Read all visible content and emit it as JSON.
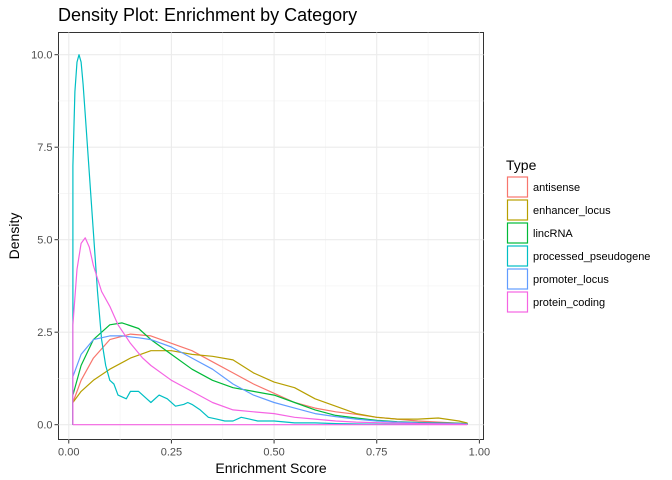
{
  "chart_data": {
    "type": "line",
    "title": "Density Plot: Enrichment by Category",
    "xlabel": "Enrichment Score",
    "ylabel": "Density",
    "xlim": [
      -0.025,
      1.01
    ],
    "ylim": [
      -0.4,
      10.6
    ],
    "x_ticks": [
      0.0,
      0.25,
      0.5,
      0.75,
      1.0
    ],
    "x_tick_labels": [
      "0.00",
      "0.25",
      "0.50",
      "0.75",
      "1.00"
    ],
    "y_ticks": [
      0.0,
      2.5,
      5.0,
      7.5,
      10.0
    ],
    "y_tick_labels": [
      "0.0",
      "2.5",
      "5.0",
      "7.5",
      "10.0"
    ],
    "grid": true,
    "legend": {
      "title": "Type",
      "position": "right"
    },
    "series": [
      {
        "name": "antisense",
        "color": "#F8766D",
        "x": [
          0.01,
          0.03,
          0.06,
          0.1,
          0.15,
          0.2,
          0.25,
          0.3,
          0.35,
          0.4,
          0.45,
          0.5,
          0.55,
          0.6,
          0.65,
          0.7,
          0.75,
          0.8,
          0.85,
          0.9,
          0.95,
          0.97
        ],
        "y": [
          0.6,
          1.2,
          1.8,
          2.3,
          2.45,
          2.4,
          2.2,
          2.0,
          1.7,
          1.4,
          1.1,
          0.85,
          0.6,
          0.45,
          0.35,
          0.28,
          0.2,
          0.15,
          0.1,
          0.07,
          0.04,
          0.03
        ]
      },
      {
        "name": "enhancer_locus",
        "color": "#B79F00",
        "x": [
          0.01,
          0.03,
          0.06,
          0.1,
          0.15,
          0.2,
          0.25,
          0.3,
          0.35,
          0.4,
          0.45,
          0.5,
          0.55,
          0.6,
          0.65,
          0.7,
          0.75,
          0.8,
          0.85,
          0.9,
          0.95,
          0.97
        ],
        "y": [
          0.6,
          0.9,
          1.2,
          1.5,
          1.8,
          2.0,
          2.0,
          1.9,
          1.85,
          1.75,
          1.4,
          1.15,
          1.0,
          0.7,
          0.5,
          0.3,
          0.2,
          0.15,
          0.15,
          0.18,
          0.1,
          0.05
        ]
      },
      {
        "name": "lincRNA",
        "color": "#00BA38",
        "x": [
          0.01,
          0.03,
          0.06,
          0.1,
          0.13,
          0.17,
          0.2,
          0.25,
          0.3,
          0.35,
          0.4,
          0.45,
          0.5,
          0.55,
          0.6,
          0.65,
          0.7,
          0.75,
          0.8,
          0.85,
          0.9,
          0.95,
          0.97
        ],
        "y": [
          0.8,
          1.6,
          2.3,
          2.7,
          2.75,
          2.6,
          2.3,
          1.9,
          1.5,
          1.2,
          1.0,
          0.9,
          0.8,
          0.6,
          0.4,
          0.25,
          0.18,
          0.12,
          0.08,
          0.06,
          0.05,
          0.04,
          0.03
        ]
      },
      {
        "name": "processed_pseudogene",
        "color": "#00BFC4",
        "x": [
          0.01,
          0.015,
          0.02,
          0.025,
          0.03,
          0.035,
          0.04,
          0.05,
          0.06,
          0.07,
          0.08,
          0.09,
          0.1,
          0.11,
          0.12,
          0.14,
          0.15,
          0.17,
          0.19,
          0.2,
          0.22,
          0.24,
          0.26,
          0.28,
          0.29,
          0.3,
          0.32,
          0.34,
          0.36,
          0.38,
          0.4,
          0.42,
          0.44,
          0.46,
          0.5,
          0.55,
          0.6,
          0.65,
          0.7,
          0.8,
          0.9,
          0.97
        ],
        "y": [
          7.0,
          9.0,
          9.8,
          10.0,
          9.8,
          9.2,
          8.4,
          6.8,
          5.2,
          3.6,
          2.3,
          1.6,
          1.2,
          1.1,
          0.8,
          0.7,
          0.9,
          0.9,
          0.7,
          0.6,
          0.8,
          0.7,
          0.5,
          0.55,
          0.6,
          0.55,
          0.4,
          0.2,
          0.15,
          0.1,
          0.1,
          0.2,
          0.15,
          0.1,
          0.1,
          0.05,
          0.05,
          0.03,
          0.02,
          0.01,
          0.01,
          0.01
        ]
      },
      {
        "name": "promoter_locus",
        "color": "#619CFF",
        "x": [
          0.01,
          0.03,
          0.06,
          0.1,
          0.13,
          0.17,
          0.2,
          0.25,
          0.3,
          0.35,
          0.4,
          0.45,
          0.5,
          0.55,
          0.6,
          0.65,
          0.7,
          0.75,
          0.8,
          0.85,
          0.9,
          0.95,
          0.97
        ],
        "y": [
          1.3,
          1.9,
          2.3,
          2.4,
          2.4,
          2.35,
          2.3,
          2.1,
          1.8,
          1.5,
          1.1,
          0.8,
          0.6,
          0.45,
          0.3,
          0.22,
          0.15,
          0.1,
          0.07,
          0.05,
          0.04,
          0.03,
          0.02
        ]
      },
      {
        "name": "protein_coding",
        "color": "#F564E3",
        "x": [
          0.01,
          0.02,
          0.03,
          0.04,
          0.05,
          0.06,
          0.08,
          0.1,
          0.12,
          0.15,
          0.18,
          0.2,
          0.25,
          0.3,
          0.35,
          0.4,
          0.45,
          0.5,
          0.55,
          0.6,
          0.65,
          0.7,
          0.8,
          0.9,
          0.97
        ],
        "y": [
          2.7,
          4.2,
          4.9,
          5.05,
          4.8,
          4.3,
          3.6,
          3.2,
          2.7,
          2.2,
          1.8,
          1.6,
          1.2,
          0.9,
          0.6,
          0.4,
          0.35,
          0.3,
          0.2,
          0.15,
          0.1,
          0.07,
          0.04,
          0.02,
          0.01
        ]
      }
    ]
  }
}
